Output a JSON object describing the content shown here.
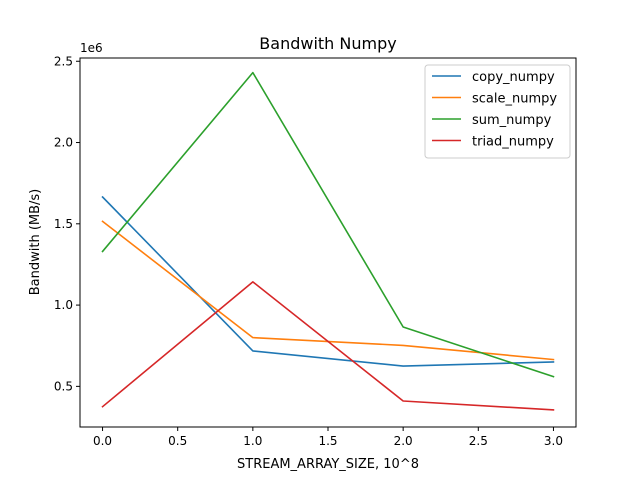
{
  "chart_data": {
    "type": "line",
    "title": "Bandwith Numpy",
    "xlabel": "STREAM_ARRAY_SIZE, 10^8",
    "ylabel": "Bandwith (MB/s)",
    "y_offset_label": "1e6",
    "xlim": [
      -0.15,
      3.15
    ],
    "ylim": [
      250000,
      2520000
    ],
    "x_ticks": [
      0.0,
      0.5,
      1.0,
      1.5,
      2.0,
      2.5,
      3.0
    ],
    "x_tick_labels": [
      "0.0",
      "0.5",
      "1.0",
      "1.5",
      "2.0",
      "2.5",
      "3.0"
    ],
    "y_ticks": [
      500000,
      1000000,
      1500000,
      2000000,
      2500000
    ],
    "y_tick_labels": [
      "0.5",
      "1.0",
      "1.5",
      "2.0",
      "2.5"
    ],
    "grid": false,
    "legend_position": "top-right",
    "x": [
      0,
      1,
      2,
      3
    ],
    "series": [
      {
        "name": "copy_numpy",
        "color": "#1f77b4",
        "values": [
          1665000,
          718000,
          625000,
          650000
        ]
      },
      {
        "name": "scale_numpy",
        "color": "#ff7f0e",
        "values": [
          1515000,
          800000,
          752000,
          665000
        ]
      },
      {
        "name": "sum_numpy",
        "color": "#2ca02c",
        "values": [
          1330000,
          2430000,
          865000,
          560000
        ]
      },
      {
        "name": "triad_numpy",
        "color": "#d62728",
        "values": [
          375000,
          1143000,
          410000,
          355000
        ]
      }
    ]
  }
}
